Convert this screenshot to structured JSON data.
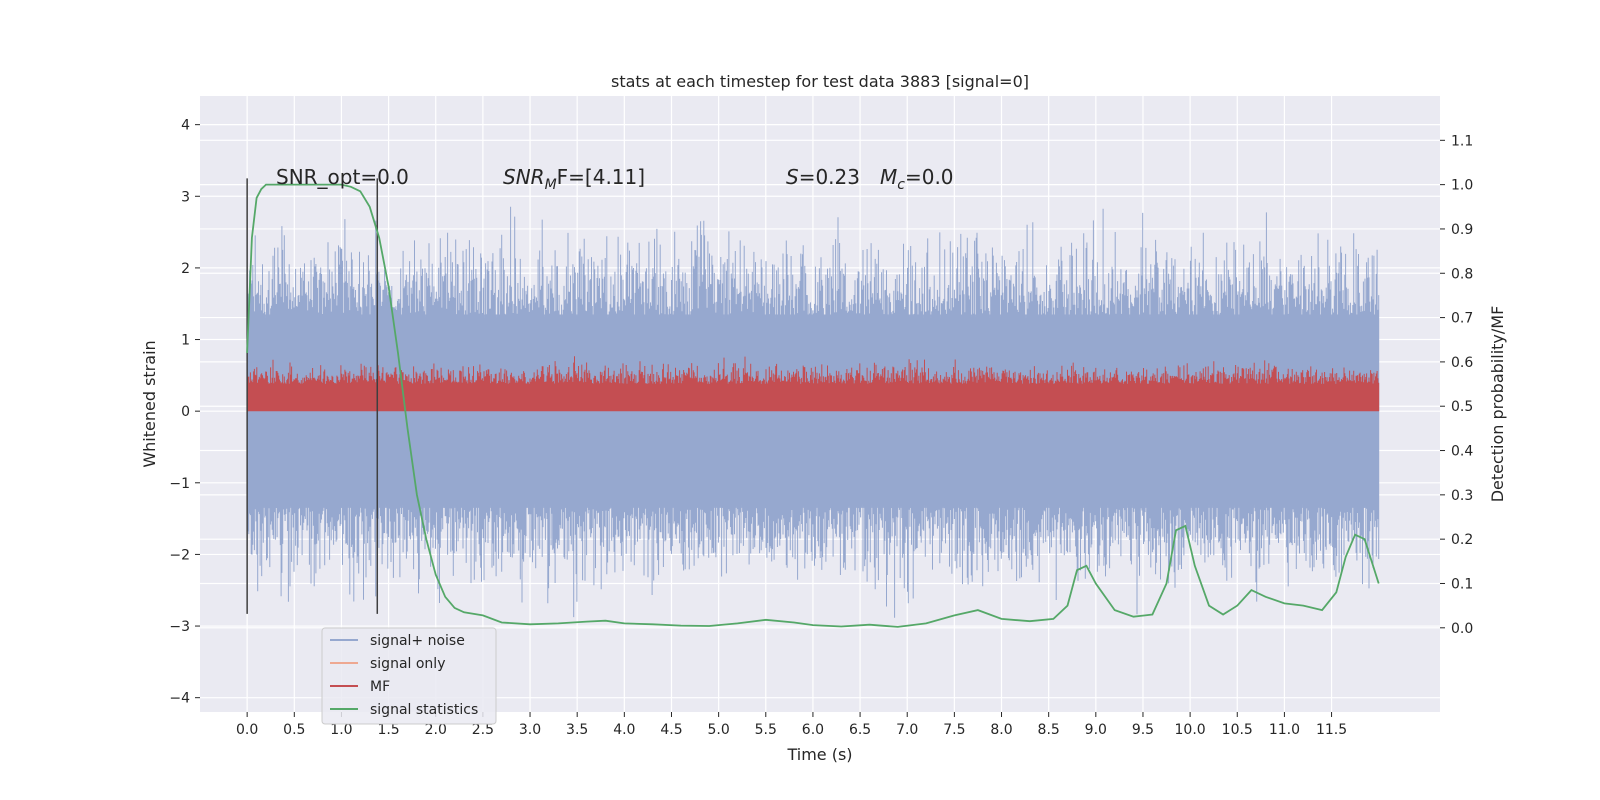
{
  "chart_data": {
    "type": "line",
    "title": "stats at each timestep for test data 3883 [signal=0]",
    "xlabel": "Time (s)",
    "ylabel_left": "Whitened strain",
    "ylabel_right": "Detection probability/MF",
    "xlim": [
      -0.5,
      12.65
    ],
    "ylim_left": [
      -4.2,
      4.4
    ],
    "ylim_right": [
      -0.19,
      1.2
    ],
    "grid": true,
    "xticks": [
      "0.0",
      "0.5",
      "1.0",
      "1.5",
      "2.0",
      "2.5",
      "3.0",
      "3.5",
      "4.0",
      "4.5",
      "5.0",
      "5.5",
      "6.0",
      "6.5",
      "7.0",
      "7.5",
      "8.0",
      "8.5",
      "9.0",
      "9.5",
      "10.0",
      "10.5",
      "11.0",
      "11.5"
    ],
    "yticks_left": [
      "4",
      "3",
      "2",
      "1",
      "0",
      "−1",
      "−2",
      "−3",
      "−4"
    ],
    "yticks_right": [
      "1.1",
      "1.0",
      "0.9",
      "0.8",
      "0.7",
      "0.6",
      "0.5",
      "0.4",
      "0.3",
      "0.2",
      "0.1",
      "0.0"
    ],
    "annotations": {
      "snr_opt": "SNR_opt=0.0",
      "snr_mf_main": "SNR",
      "snr_mf_sub": "M",
      "snr_mf_rest": "F=[4.11]",
      "s_label": "S",
      "s_value": "=0.23",
      "mc_main": "M",
      "mc_sub": "c",
      "mc_value": "=0.0"
    },
    "vertical_markers": [
      0.0,
      1.38
    ],
    "noise_range": [
      0.0,
      12.0
    ],
    "signal_statistics": {
      "x": [
        0.0,
        0.05,
        0.1,
        0.15,
        0.2,
        0.3,
        0.5,
        0.8,
        1.0,
        1.1,
        1.2,
        1.3,
        1.4,
        1.5,
        1.6,
        1.7,
        1.8,
        1.9,
        2.0,
        2.1,
        2.2,
        2.3,
        2.5,
        2.7,
        3.0,
        3.3,
        3.6,
        3.8,
        4.0,
        4.3,
        4.6,
        4.9,
        5.2,
        5.5,
        5.8,
        6.0,
        6.3,
        6.6,
        6.9,
        7.2,
        7.5,
        7.75,
        8.0,
        8.3,
        8.55,
        8.7,
        8.8,
        8.9,
        9.0,
        9.2,
        9.4,
        9.6,
        9.75,
        9.85,
        9.95,
        10.05,
        10.2,
        10.35,
        10.5,
        10.65,
        10.8,
        11.0,
        11.2,
        11.4,
        11.55,
        11.65,
        11.75,
        11.85,
        12.0
      ],
      "y": [
        0.62,
        0.88,
        0.97,
        0.99,
        1.0,
        1.0,
        1.0,
        1.0,
        1.0,
        0.995,
        0.985,
        0.95,
        0.88,
        0.77,
        0.62,
        0.45,
        0.3,
        0.2,
        0.12,
        0.07,
        0.045,
        0.035,
        0.028,
        0.012,
        0.008,
        0.01,
        0.014,
        0.016,
        0.01,
        0.008,
        0.005,
        0.004,
        0.01,
        0.018,
        0.012,
        0.006,
        0.003,
        0.007,
        0.002,
        0.01,
        0.028,
        0.04,
        0.02,
        0.015,
        0.02,
        0.05,
        0.13,
        0.14,
        0.1,
        0.04,
        0.025,
        0.03,
        0.1,
        0.22,
        0.23,
        0.14,
        0.05,
        0.03,
        0.05,
        0.085,
        0.07,
        0.055,
        0.05,
        0.04,
        0.08,
        0.16,
        0.21,
        0.2,
        0.1
      ]
    },
    "series": [
      {
        "name": "signal+ noise",
        "color": "#96a8cf"
      },
      {
        "name": "signal only",
        "color": "#eea891"
      },
      {
        "name": "MF",
        "color": "#c44e52"
      },
      {
        "name": "signal statistics",
        "color": "#55a868"
      }
    ],
    "legend_position": "lower-left"
  }
}
